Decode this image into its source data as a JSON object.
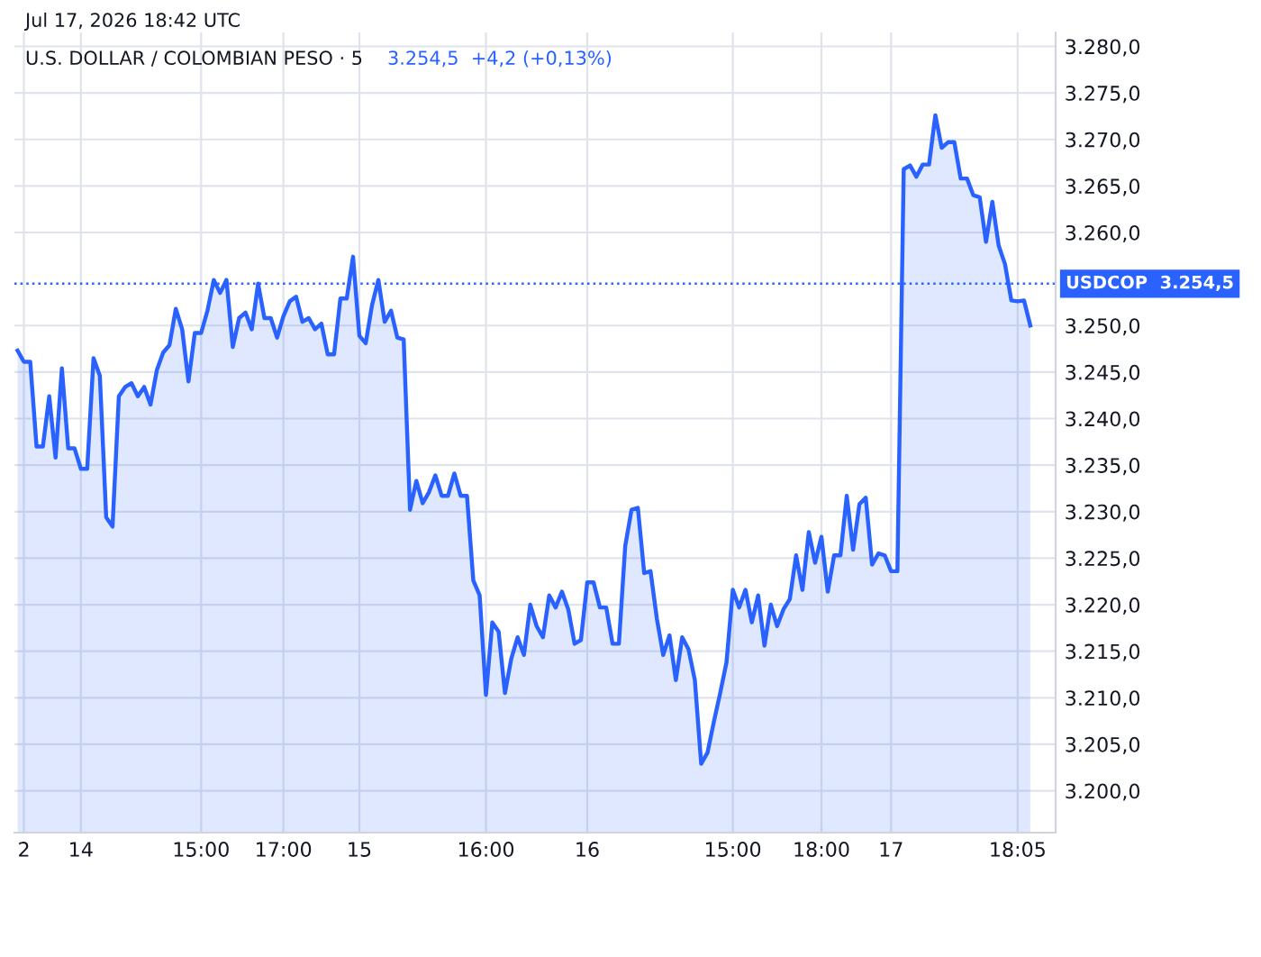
{
  "chart_data": {
    "type": "area",
    "title": "U.S. DOLLAR / COLOMBIAN PESO · 5",
    "annotations": [
      "Jul 17, 2026 18:42 UTC",
      "3.254,5  +4,2 (+0,13%)"
    ],
    "categories": [
      null,
      "2",
      null,
      null,
      null,
      null,
      null,
      null,
      null,
      null,
      "14",
      null,
      null,
      null,
      null,
      null,
      null,
      null,
      null,
      null,
      null,
      null,
      null,
      null,
      null,
      null,
      null,
      null,
      null,
      "15:00",
      null,
      null,
      null,
      null,
      null,
      null,
      null,
      null,
      null,
      null,
      null,
      null,
      "17:00",
      null,
      null,
      null,
      null,
      null,
      null,
      null,
      null,
      null,
      null,
      null,
      "15",
      null,
      null,
      null,
      null,
      null,
      null,
      null,
      null,
      null,
      null,
      null,
      null,
      null,
      null,
      null,
      null,
      null,
      null,
      null,
      "16:00",
      null,
      null,
      null,
      null,
      null,
      null,
      null,
      null,
      null,
      null,
      null,
      null,
      null,
      null,
      null,
      "16",
      null,
      null,
      null,
      null,
      null,
      null,
      null,
      null,
      null,
      null,
      null,
      null,
      null,
      null,
      null,
      null,
      null,
      null,
      null,
      null,
      null,
      null,
      "15:00",
      null,
      null,
      null,
      null,
      null,
      null,
      null,
      null,
      null,
      null,
      null,
      null,
      null,
      "18:00",
      null,
      null,
      null,
      null,
      null,
      null,
      null,
      null,
      null,
      null,
      "17",
      null,
      null,
      null,
      null,
      null,
      null,
      null,
      null,
      null,
      null,
      null,
      null,
      null,
      null,
      null,
      null,
      null,
      null,
      null,
      "18:05",
      null,
      null
    ],
    "series": [
      {
        "color": "#2962ff",
        "values": [
          3247.3,
          3246.1,
          3246.1,
          3237.0,
          3237.0,
          3242.4,
          3235.8,
          3245.4,
          3236.8,
          3236.8,
          3234.6,
          3234.6,
          3246.5,
          3244.6,
          3229.4,
          3228.4,
          3242.4,
          3243.4,
          3243.8,
          3242.4,
          3243.4,
          3241.5,
          3245.2,
          3247.1,
          3247.9,
          3251.8,
          3249.6,
          3244.0,
          3249.2,
          3249.2,
          3251.6,
          3254.9,
          3253.5,
          3254.9,
          3247.7,
          3250.8,
          3251.4,
          3249.6,
          3254.5,
          3250.8,
          3250.8,
          3248.7,
          3251.0,
          3252.6,
          3253.1,
          3250.4,
          3250.8,
          3249.6,
          3250.2,
          3246.9,
          3246.9,
          3252.9,
          3252.9,
          3257.4,
          3248.9,
          3248.1,
          3252.2,
          3254.9,
          3250.4,
          3251.6,
          3248.7,
          3248.5,
          3230.2,
          3233.3,
          3230.9,
          3232.1,
          3233.9,
          3231.7,
          3231.7,
          3234.1,
          3231.7,
          3231.7,
          3222.6,
          3221.0,
          3210.3,
          3218.1,
          3217.1,
          3210.5,
          3214.2,
          3216.5,
          3214.6,
          3220.0,
          3217.7,
          3216.5,
          3221.0,
          3219.7,
          3221.4,
          3219.5,
          3215.8,
          3216.2,
          3222.4,
          3222.4,
          3219.7,
          3219.7,
          3215.8,
          3215.8,
          3226.3,
          3230.2,
          3230.4,
          3223.4,
          3223.6,
          3218.5,
          3214.6,
          3216.7,
          3211.9,
          3216.5,
          3215.2,
          3211.9,
          3202.9,
          3204.1,
          3207.4,
          3210.5,
          3213.8,
          3221.6,
          3219.7,
          3221.6,
          3218.1,
          3221.0,
          3215.6,
          3220.0,
          3217.7,
          3219.5,
          3220.6,
          3225.3,
          3221.6,
          3227.8,
          3224.5,
          3227.3,
          3221.4,
          3225.3,
          3225.3,
          3231.7,
          3225.9,
          3230.8,
          3231.5,
          3224.3,
          3225.5,
          3225.3,
          3223.6,
          3223.6,
          3266.8,
          3267.2,
          3266.0,
          3267.3,
          3267.3,
          3272.6,
          3269.1,
          3269.7,
          3269.7,
          3265.8,
          3265.8,
          3264.0,
          3263.8,
          3259.0,
          3263.3,
          3258.6,
          3256.6,
          3252.7,
          3252.6,
          3252.7,
          3250.0
        ]
      }
    ],
    "ylim": [
      3195.5,
      3281.5
    ],
    "yticks": [
      {
        "value": 3200,
        "label": "3.200,0"
      },
      {
        "value": 3205,
        "label": "3.205,0"
      },
      {
        "value": 3210,
        "label": "3.210,0"
      },
      {
        "value": 3215,
        "label": "3.215,0"
      },
      {
        "value": 3220,
        "label": "3.220,0"
      },
      {
        "value": 3225,
        "label": "3.225,0"
      },
      {
        "value": 3230,
        "label": "3.230,0"
      },
      {
        "value": 3235,
        "label": "3.235,0"
      },
      {
        "value": 3240,
        "label": "3.240,0"
      },
      {
        "value": 3245,
        "label": "3.245,0"
      },
      {
        "value": 3250,
        "label": "3.250,0"
      },
      {
        "value": 3260,
        "label": "3.260,0"
      },
      {
        "value": 3265,
        "label": "3.265,0"
      },
      {
        "value": 3270,
        "label": "3.270,0"
      },
      {
        "value": 3275,
        "label": "3.275,0"
      },
      {
        "value": 3280,
        "label": "3.280,0"
      }
    ],
    "ref_lines": [
      {
        "axis": "y",
        "value": 3254.5,
        "label": "USDCOP  3.254,5",
        "color": "#2962ff",
        "line_style": "dotted"
      }
    ],
    "grid": true
  }
}
